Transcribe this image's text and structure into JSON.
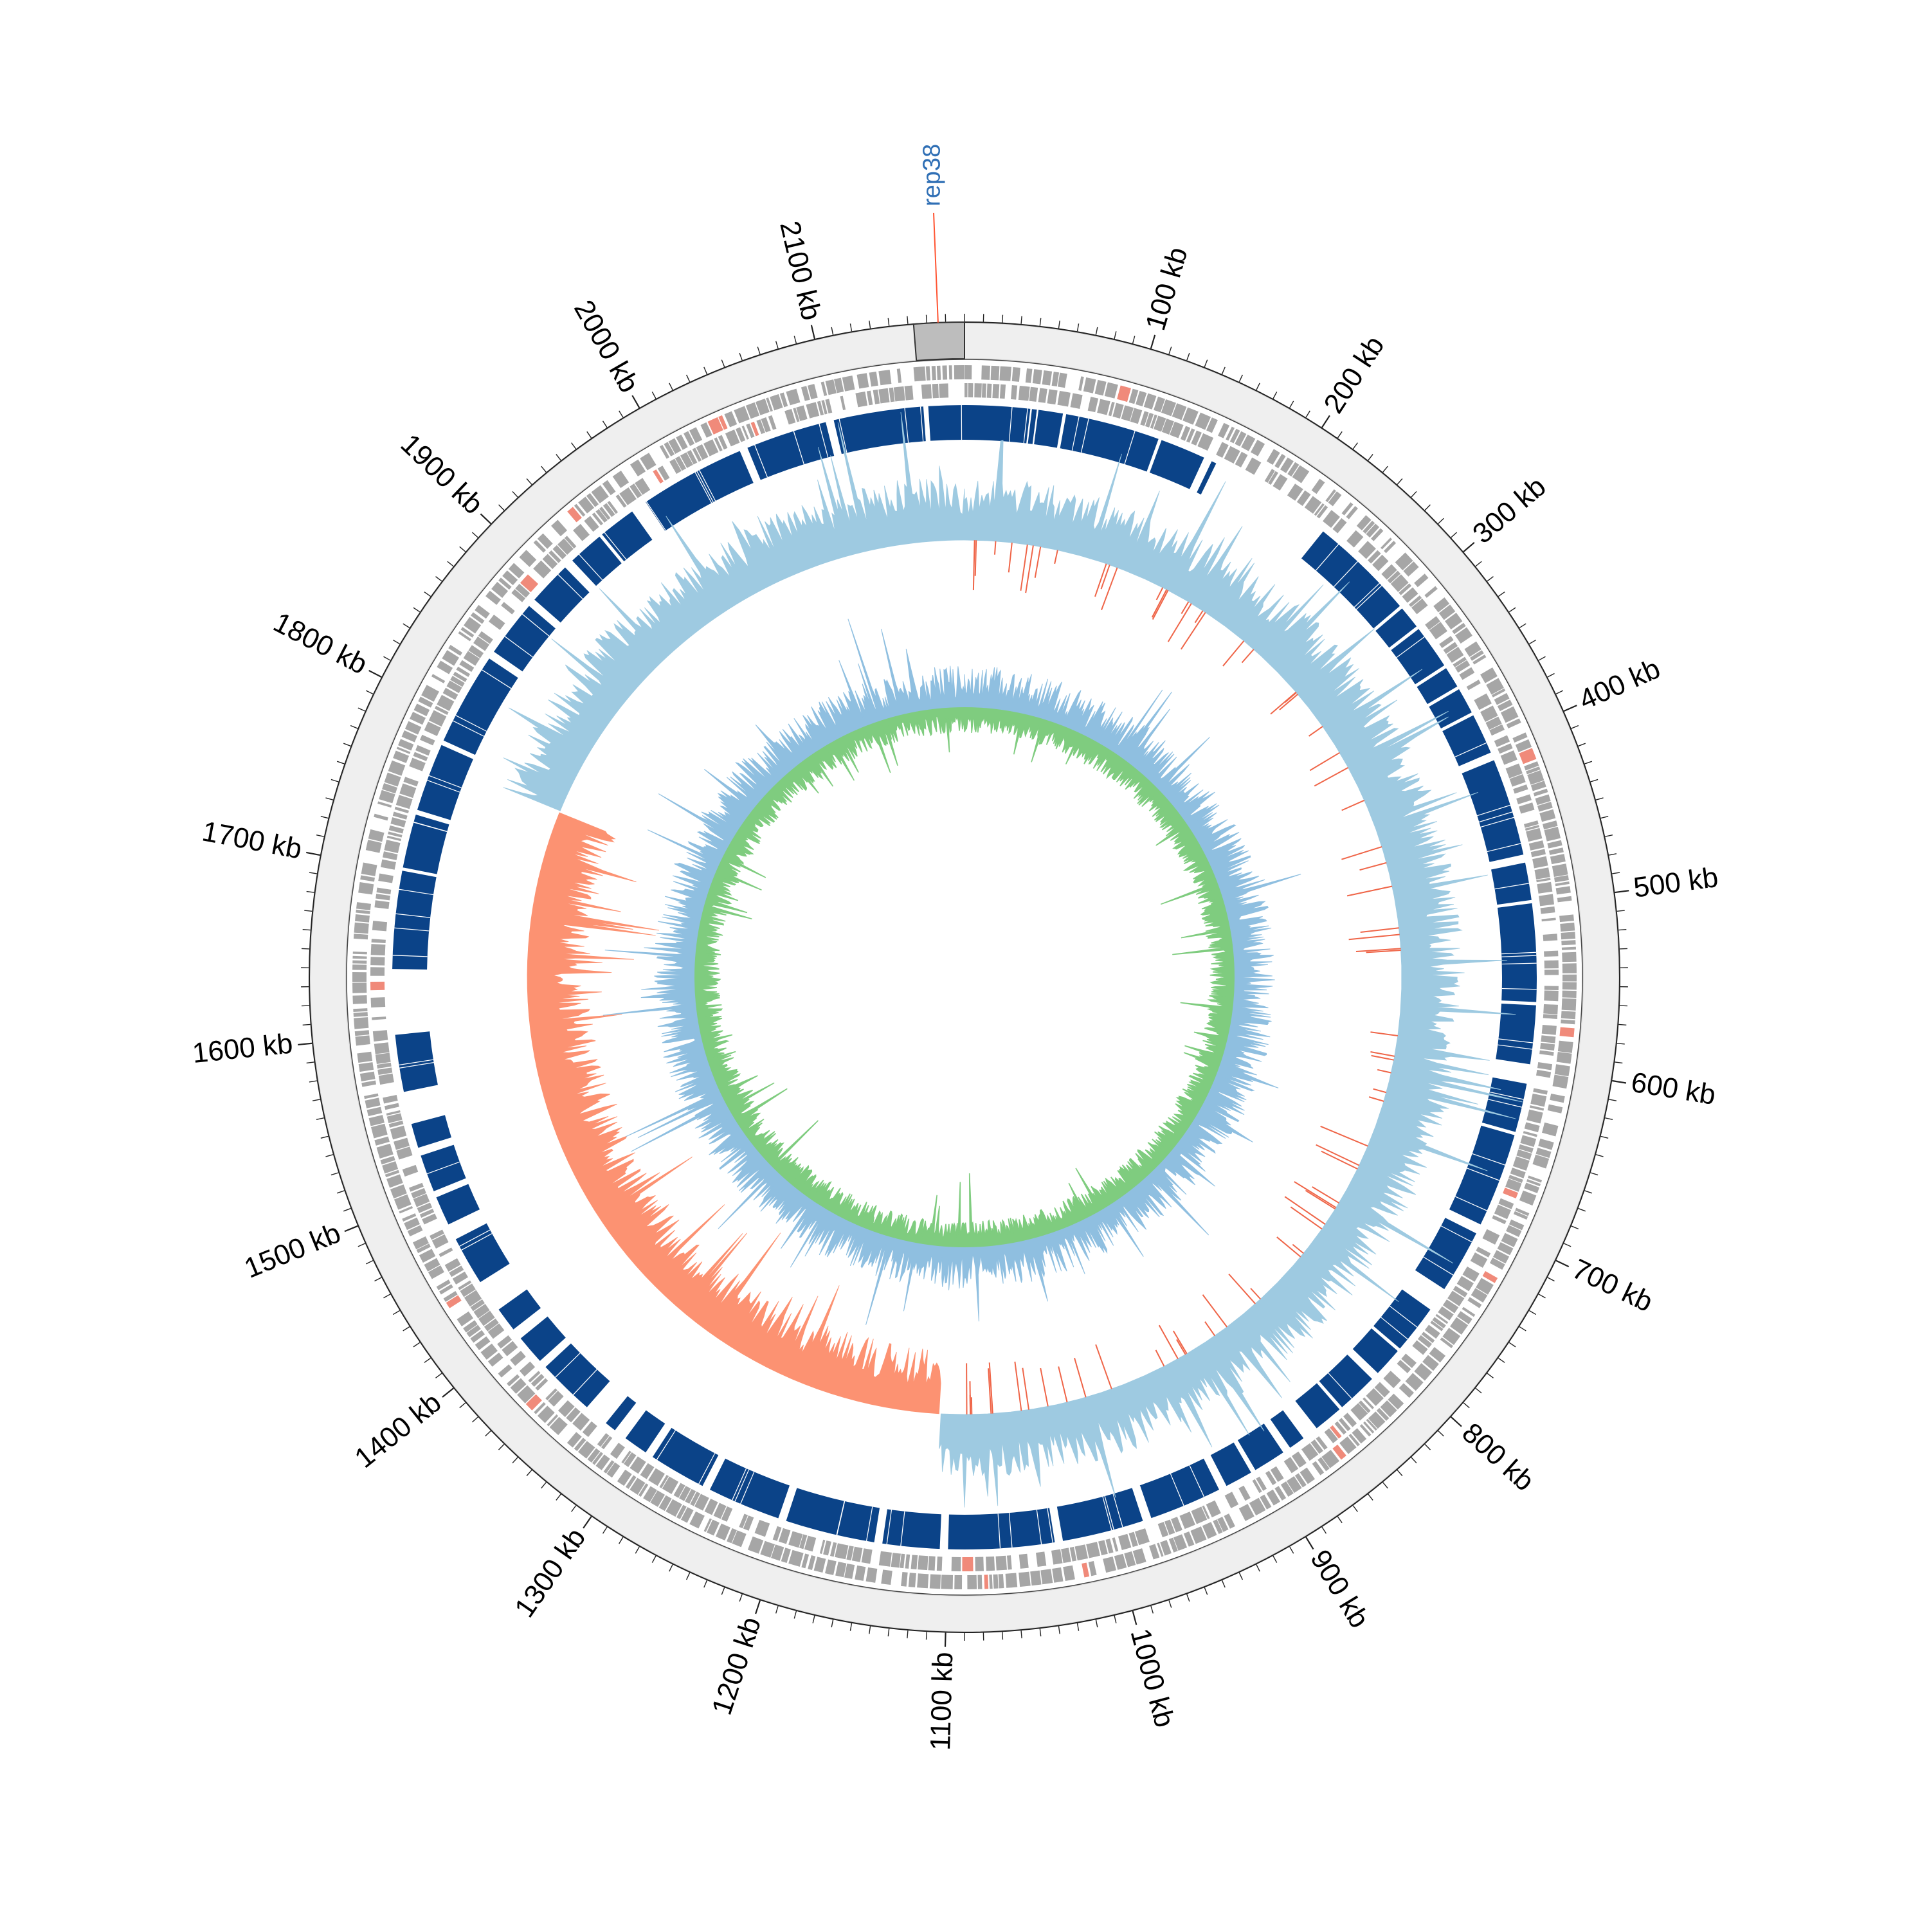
{
  "genome_map": {
    "genome_length_kb": 2180,
    "origin_position_kb": 0,
    "major_ticks": [
      {
        "value": 100,
        "label": "100 kb"
      },
      {
        "value": 200,
        "label": "200 kb"
      },
      {
        "value": 300,
        "label": "300 kb"
      },
      {
        "value": 400,
        "label": "400 kb"
      },
      {
        "value": 500,
        "label": "500 kb"
      },
      {
        "value": 600,
        "label": "600 kb"
      },
      {
        "value": 700,
        "label": "700 kb"
      },
      {
        "value": 800,
        "label": "800 kb"
      },
      {
        "value": 900,
        "label": "900 kb"
      },
      {
        "value": 1000,
        "label": "1000 kb"
      },
      {
        "value": 1100,
        "label": "1100 kb"
      },
      {
        "value": 1200,
        "label": "1200 kb"
      },
      {
        "value": 1300,
        "label": "1300 kb"
      },
      {
        "value": 1400,
        "label": "1400 kb"
      },
      {
        "value": 1500,
        "label": "1500 kb"
      },
      {
        "value": 1600,
        "label": "1600 kb"
      },
      {
        "value": 1700,
        "label": "1700 kb"
      },
      {
        "value": 1800,
        "label": "1800 kb"
      },
      {
        "value": 1900,
        "label": "1900 kb"
      },
      {
        "value": 2000,
        "label": "2000 kb"
      },
      {
        "value": 2100,
        "label": "2100 kb"
      }
    ],
    "minor_tick_step_kb": 10,
    "highlight_region_kb": [
      2153,
      2180
    ],
    "features": [
      {
        "label": "rep38",
        "position_kb": 2166,
        "color": "#2f6fb5",
        "line_color": "#ff5533"
      }
    ],
    "tracks": {
      "outer_band": "#efefef",
      "genes": "#a6a6a6",
      "genes_rna": "#f08a7a",
      "homology_blocks": "#0b4388",
      "gc_skew_positive": "#9ecae1",
      "gc_skew_negative": "#fc9272",
      "gc_skew_negative_line": "#ef6548",
      "gc_content_outer": "#8fbfe0",
      "gc_content_inner": "#7fcc7f"
    }
  }
}
